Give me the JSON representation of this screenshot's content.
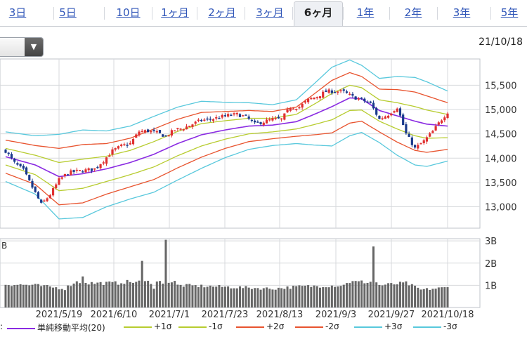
{
  "tabs": [
    "3日",
    "5日",
    "10日",
    "1ヶ月",
    "2ヶ月",
    "3ヶ月",
    "6ヶ月",
    "1年",
    "2年",
    "3年",
    "5年"
  ],
  "active_tab": "6ヶ月",
  "date_label": "21/10/18",
  "legend_lead": ":",
  "legend": [
    {
      "label": "単純移動平均(20)",
      "color": "#8a2be2"
    },
    {
      "label": "+1σ",
      "color": "#b7cc2f"
    },
    {
      "label": "-1σ",
      "color": "#b7cc2f"
    },
    {
      "label": "+2σ",
      "color": "#e8532e"
    },
    {
      "label": "-2σ",
      "color": "#e8532e"
    },
    {
      "label": "+3σ",
      "color": "#58c8dc"
    },
    {
      "label": "-3σ",
      "color": "#58c8dc"
    }
  ],
  "chart_data": {
    "type": "candlestick",
    "x_tick_labels": [
      "2021/5/19",
      "2021/6/10",
      "2021/7/1",
      "2021/7/23",
      "2021/8/13",
      "2021/9/3",
      "2021/9/27",
      "2021/10/18"
    ],
    "price_ticks": [
      "15,500",
      "15,000",
      "14,500",
      "14,000",
      "13,500",
      "13,000"
    ],
    "price_tick_values": [
      15500,
      15000,
      14500,
      14000,
      13500,
      13000
    ],
    "ylim": [
      12560,
      16040
    ],
    "volume_ticks": [
      "3B",
      "2B",
      "1B"
    ],
    "volume_tick_values": [
      3,
      2,
      1
    ],
    "volume_ylim": [
      0,
      3.1
    ],
    "volume_axis_fragment": "B",
    "up_color": "#e03030",
    "down_color": "#1a3a8c",
    "ma_anchors": [
      [
        0,
        14030
      ],
      [
        10,
        13860
      ],
      [
        18,
        13620
      ],
      [
        26,
        13680
      ],
      [
        34,
        13780
      ],
      [
        42,
        13910
      ],
      [
        50,
        14080
      ],
      [
        58,
        14300
      ],
      [
        66,
        14480
      ],
      [
        74,
        14580
      ],
      [
        82,
        14660
      ],
      [
        90,
        14680
      ],
      [
        98,
        14750
      ],
      [
        104,
        14900
      ],
      [
        110,
        15060
      ],
      [
        116,
        15240
      ],
      [
        120,
        15220
      ],
      [
        126,
        14980
      ],
      [
        132,
        14870
      ],
      [
        138,
        14760
      ],
      [
        142,
        14700
      ],
      [
        149,
        14660
      ]
    ],
    "sd_anchors": [
      [
        0,
        170
      ],
      [
        10,
        200
      ],
      [
        18,
        290
      ],
      [
        26,
        300
      ],
      [
        34,
        260
      ],
      [
        42,
        250
      ],
      [
        50,
        260
      ],
      [
        58,
        250
      ],
      [
        66,
        230
      ],
      [
        74,
        190
      ],
      [
        82,
        160
      ],
      [
        90,
        140
      ],
      [
        98,
        150
      ],
      [
        104,
        210
      ],
      [
        110,
        270
      ],
      [
        116,
        260
      ],
      [
        120,
        230
      ],
      [
        126,
        220
      ],
      [
        132,
        270
      ],
      [
        138,
        300
      ],
      [
        142,
        290
      ],
      [
        149,
        240
      ]
    ],
    "close_anchors": [
      [
        0,
        14150
      ],
      [
        3,
        13900
      ],
      [
        6,
        13750
      ],
      [
        9,
        13400
      ],
      [
        12,
        13050
      ],
      [
        15,
        13250
      ],
      [
        18,
        13550
      ],
      [
        21,
        13700
      ],
      [
        24,
        13730
      ],
      [
        27,
        13750
      ],
      [
        30,
        13780
      ],
      [
        33,
        13950
      ],
      [
        36,
        14150
      ],
      [
        39,
        14250
      ],
      [
        42,
        14300
      ],
      [
        45,
        14550
      ],
      [
        48,
        14560
      ],
      [
        51,
        14520
      ],
      [
        54,
        14450
      ],
      [
        57,
        14580
      ],
      [
        60,
        14620
      ],
      [
        63,
        14700
      ],
      [
        66,
        14780
      ],
      [
        69,
        14800
      ],
      [
        72,
        14840
      ],
      [
        75,
        14880
      ],
      [
        78,
        14900
      ],
      [
        81,
        14850
      ],
      [
        84,
        14700
      ],
      [
        87,
        14750
      ],
      [
        90,
        14800
      ],
      [
        93,
        14800
      ],
      [
        96,
        15050
      ],
      [
        99,
        15050
      ],
      [
        102,
        15200
      ],
      [
        105,
        15270
      ],
      [
        108,
        15370
      ],
      [
        111,
        15380
      ],
      [
        114,
        15360
      ],
      [
        117,
        15260
      ],
      [
        120,
        15200
      ],
      [
        123,
        15120
      ],
      [
        126,
        14800
      ],
      [
        129,
        14900
      ],
      [
        132,
        15050
      ],
      [
        135,
        14500
      ],
      [
        138,
        14200
      ],
      [
        141,
        14350
      ],
      [
        144,
        14550
      ],
      [
        147,
        14800
      ],
      [
        149,
        14950
      ]
    ],
    "volume_anchors": [
      [
        0,
        1.05
      ],
      [
        10,
        1.0
      ],
      [
        20,
        0.85
      ],
      [
        26,
        1.4
      ],
      [
        28,
        1.1
      ],
      [
        38,
        1.1
      ],
      [
        46,
        2.1
      ],
      [
        50,
        0.9
      ],
      [
        54,
        3.05
      ],
      [
        58,
        1.0
      ],
      [
        70,
        0.95
      ],
      [
        90,
        0.85
      ],
      [
        100,
        0.95
      ],
      [
        114,
        1.0
      ],
      [
        124,
        2.75
      ],
      [
        126,
        1.0
      ],
      [
        135,
        1.1
      ],
      [
        140,
        0.8
      ],
      [
        149,
        0.9
      ]
    ]
  }
}
